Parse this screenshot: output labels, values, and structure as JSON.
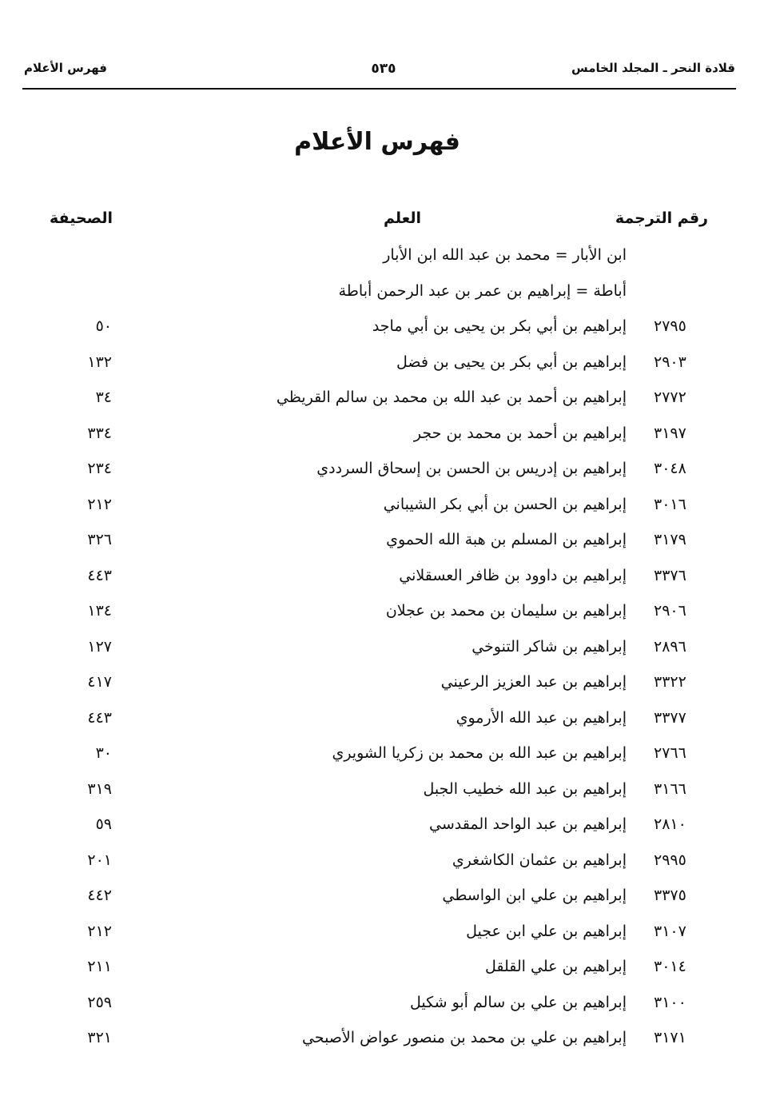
{
  "header": {
    "book_title": "قلادة النحر ـ المجلد الخامس",
    "page_number": "٥٣٥",
    "section": "فهرس الأعلام"
  },
  "title": "فهرس الأعلام",
  "columns": {
    "entry_number": "رقم الترجمة",
    "name": "العلم",
    "page": "الصحيفة"
  },
  "rows": [
    {
      "num": "",
      "name": "ابن الأبار = محمد بن عبد الله ابن الأبار",
      "page": ""
    },
    {
      "num": "",
      "name": "أباطة = إبراهيم بن عمر بن عبد الرحمن أباطة",
      "page": ""
    },
    {
      "num": "٢٧٩٥",
      "name": "إبراهيم بن أبي بكر بن يحيى بن أبي ماجد",
      "page": "٥٠"
    },
    {
      "num": "٢٩٠٣",
      "name": "إبراهيم بن أبي بكر بن يحيى بن فضل",
      "page": "١٣٢"
    },
    {
      "num": "٢٧٧٢",
      "name": "إبراهيم بن أحمد بن عبد الله بن محمد بن سالم القريظي",
      "page": "٣٤"
    },
    {
      "num": "٣١٩٧",
      "name": "إبراهيم بن أحمد بن محمد بن حجر",
      "page": "٣٣٤"
    },
    {
      "num": "٣٠٤٨",
      "name": "إبراهيم بن إدريس بن الحسن بن إسحاق السرددي",
      "page": "٢٣٤"
    },
    {
      "num": "٣٠١٦",
      "name": "إبراهيم بن الحسن بن أبي بكر الشيباني",
      "page": "٢١٢"
    },
    {
      "num": "٣١٧٩",
      "name": "إبراهيم بن المسلم بن هبة الله الحموي",
      "page": "٣٢٦"
    },
    {
      "num": "٣٣٧٦",
      "name": "إبراهيم بن داوود بن ظافر العسقلاني",
      "page": "٤٤٣"
    },
    {
      "num": "٢٩٠٦",
      "name": "إبراهيم بن سليمان بن محمد بن عجلان",
      "page": "١٣٤"
    },
    {
      "num": "٢٨٩٦",
      "name": "إبراهيم بن شاكر التنوخي",
      "page": "١٢٧"
    },
    {
      "num": "٣٣٢٢",
      "name": "إبراهيم بن عبد العزيز الرعيني",
      "page": "٤١٧"
    },
    {
      "num": "٣٣٧٧",
      "name": "إبراهيم بن عبد الله الأرموي",
      "page": "٤٤٣"
    },
    {
      "num": "٢٧٦٦",
      "name": "إبراهيم بن عبد الله بن محمد بن زكريا الشويري",
      "page": "٣٠"
    },
    {
      "num": "٣١٦٦",
      "name": "إبراهيم بن عبد الله خطيب الجبل",
      "page": "٣١٩"
    },
    {
      "num": "٢٨١٠",
      "name": "إبراهيم بن عبد الواحد المقدسي",
      "page": "٥٩"
    },
    {
      "num": "٢٩٩٥",
      "name": "إبراهيم بن عثمان الكاشغري",
      "page": "٢٠١"
    },
    {
      "num": "٣٣٧٥",
      "name": "إبراهيم بن علي ابن الواسطي",
      "page": "٤٤٢"
    },
    {
      "num": "٣١٠٧",
      "name": "إبراهيم بن علي ابن عجيل",
      "page": "٢١٢"
    },
    {
      "num": "٣٠١٤",
      "name": "إبراهيم بن علي القلقل",
      "page": "٢١١"
    },
    {
      "num": "٣١٠٠",
      "name": "إبراهيم بن علي بن سالم أبو شكيل",
      "page": "٢٥٩"
    },
    {
      "num": "٣١٧١",
      "name": "إبراهيم بن علي بن محمد بن منصور عواض الأصبحي",
      "page": "٣٢١"
    }
  ]
}
